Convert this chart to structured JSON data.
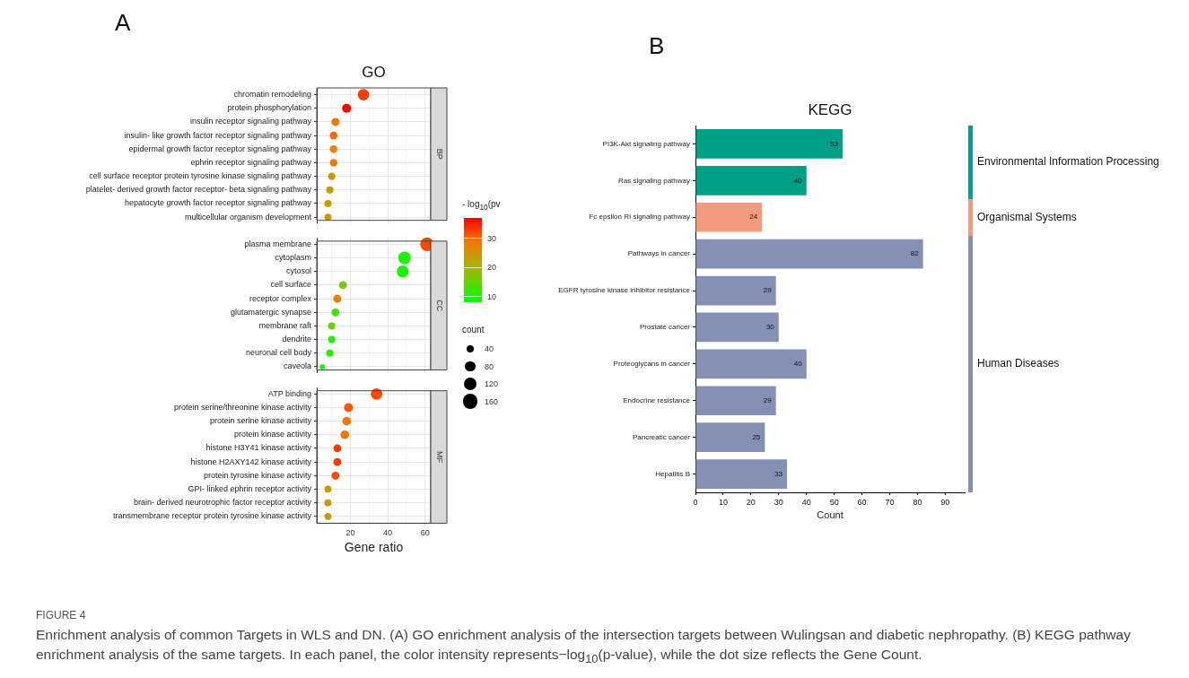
{
  "chart_data": [
    {
      "type": "bubble",
      "title": "GO",
      "xlabel": "Gene ratio",
      "orientation": "horizontal",
      "grid": true,
      "xlim": [
        2,
        63
      ],
      "xticks": [
        {
          "value": 10,
          "label": null
        },
        20,
        {
          "value": 30,
          "label": null
        },
        40,
        {
          "value": 50,
          "label": null
        },
        60
      ],
      "clim": [
        8,
        37
      ],
      "cticks": [
        10,
        20,
        30
      ],
      "clabel": "- log$_{10}$(pv",
      "legend_title": "count",
      "size_legend": [
        40,
        80,
        120,
        160
      ],
      "categories": [
        "chromatin remodeling",
        "protein phosphorylation",
        "insulin receptor signaling pathway",
        "insulin- like growth factor receptor signaling pathway",
        "epidermal growth factor receptor signaling pathway",
        "ephrin receptor signaling pathway",
        "cell surface receptor protein tyrosine kinase signaling pathway",
        "platelet- derived growth factor receptor- beta signaling pathway",
        "hepatocyte growth factor receptor signaling pathway",
        "multicellular organism development",
        null,
        "plasma membrane",
        "cytoplasm",
        "cytosol",
        "cell surface",
        "receptor complex",
        "glutamatergic synapse",
        "membrane raft",
        "dendrite",
        "neuronal cell body",
        "caveola",
        null,
        "ATP binding",
        "protein serine/threonine kinase activity",
        "protein serine kinase activity",
        "protein kinase activity",
        "histone H3Y41 kinase activity",
        "histone H2AXY142 kinase activity",
        "protein tyrosine kinase activity",
        "GPI- linked ephrin receptor activity",
        "brain- derived neurotrophic factor receptor activity",
        "transmembrane receptor protein tyrosine kinase activity"
      ],
      "values": [
        27,
        18,
        12,
        11,
        11,
        11,
        10,
        9,
        8,
        8,
        null,
        61,
        49,
        48,
        16,
        13,
        12,
        10,
        10,
        9,
        5,
        null,
        34,
        19,
        18,
        17,
        13,
        13,
        12,
        8,
        8,
        8
      ],
      "sizes": [
        100,
        62,
        50,
        45,
        43,
        43,
        42,
        40,
        40,
        38,
        null,
        140,
        122,
        110,
        47,
        50,
        47,
        40,
        40,
        40,
        22,
        null,
        100,
        62,
        56,
        56,
        47,
        47,
        47,
        37,
        37,
        37
      ],
      "cvalues": [
        33,
        37,
        29,
        30,
        28,
        29,
        24,
        24,
        24,
        24,
        null,
        32,
        10,
        10,
        17,
        27,
        13,
        16,
        11,
        11,
        10,
        null,
        32,
        31,
        29,
        29,
        33,
        33,
        32,
        24,
        24,
        24
      ],
      "annotations": [
        "A",
        "BP",
        "CC",
        "MF"
      ]
    },
    {
      "type": "bar",
      "title": "KEGG",
      "xlabel": "Count",
      "orientation": "horizontal",
      "stacked": true,
      "data_labels": true,
      "legend": "right",
      "xlim": [
        0,
        97
      ],
      "xticks": [
        0,
        10,
        20,
        30,
        40,
        50,
        60,
        70,
        80,
        90
      ],
      "categories": [
        "PI3K-Akt signaling pathway",
        "Ras signaling pathway",
        "Fc epsilon RI signaling pathway",
        "Pathways in cancer",
        "EGFR tyrosine kinase inhibitor resistance",
        "Prostate cancer",
        "Proteoglycans in cancer",
        "Endocrine resistance",
        "Pancreatic cancer",
        "Hepatitis B"
      ],
      "series": [
        {
          "name": "Environmental Information Processing",
          "color": "#00a087",
          "values": [
            53,
            40,
            null,
            null,
            null,
            null,
            null,
            null,
            null,
            null
          ]
        },
        {
          "name": "Organismal Systems",
          "color": "#f39b7f",
          "values": [
            null,
            null,
            24,
            null,
            null,
            null,
            null,
            null,
            null,
            null
          ]
        },
        {
          "name": "Human Diseases",
          "color": "#8491b4",
          "values": [
            null,
            null,
            null,
            82,
            29,
            30,
            40,
            29,
            25,
            33
          ]
        }
      ],
      "annotations": [
        "B",
        "FIGURE 4",
        "Enrichment analysis of common Targets in WLS and DN. (A) GO enrichment analysis of the intersection targets between Wulingsan and diabetic nephropathy. (B) KEGG pathway enrichment analysis of the same targets. In each panel, the color intensity represents−log$_{10}$(p-value), while the dot size reflects the Gene Count."
      ]
    }
  ]
}
